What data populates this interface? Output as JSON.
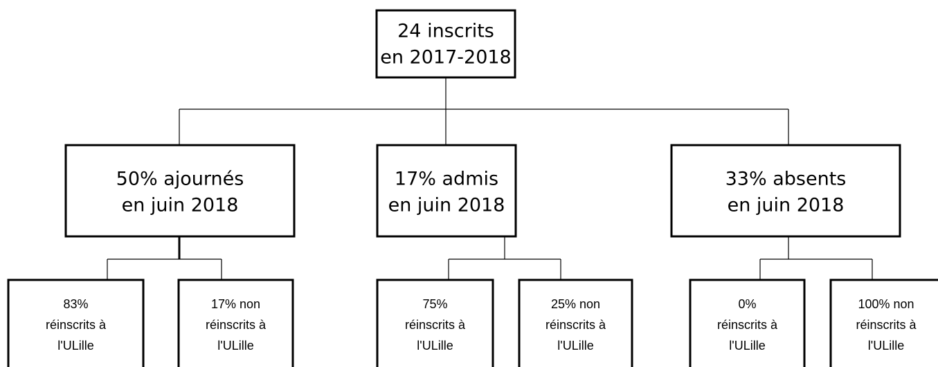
{
  "root": {
    "lines": [
      "24 inscrits",
      "en 2017-2018"
    ]
  },
  "level2": [
    {
      "lines": [
        "50% ajournés",
        "en juin 2018"
      ]
    },
    {
      "lines": [
        "17% admis",
        "en juin 2018"
      ]
    },
    {
      "lines": [
        "33% absents",
        "en juin 2018"
      ]
    }
  ],
  "level3": [
    {
      "lines": [
        "83%",
        "réinscrits à",
        "l'ULille"
      ]
    },
    {
      "lines": [
        "17% non",
        "réinscrits à",
        "l'ULille"
      ]
    },
    {
      "lines": [
        "75%",
        "réinscrits à",
        "l'ULille"
      ]
    },
    {
      "lines": [
        "25% non",
        "réinscrits à",
        "l'ULille"
      ]
    },
    {
      "lines": [
        "0%",
        "réinscrits à",
        "l'ULille"
      ]
    },
    {
      "lines": [
        "100% non",
        "réinscrits à",
        "l'ULille"
      ]
    }
  ]
}
